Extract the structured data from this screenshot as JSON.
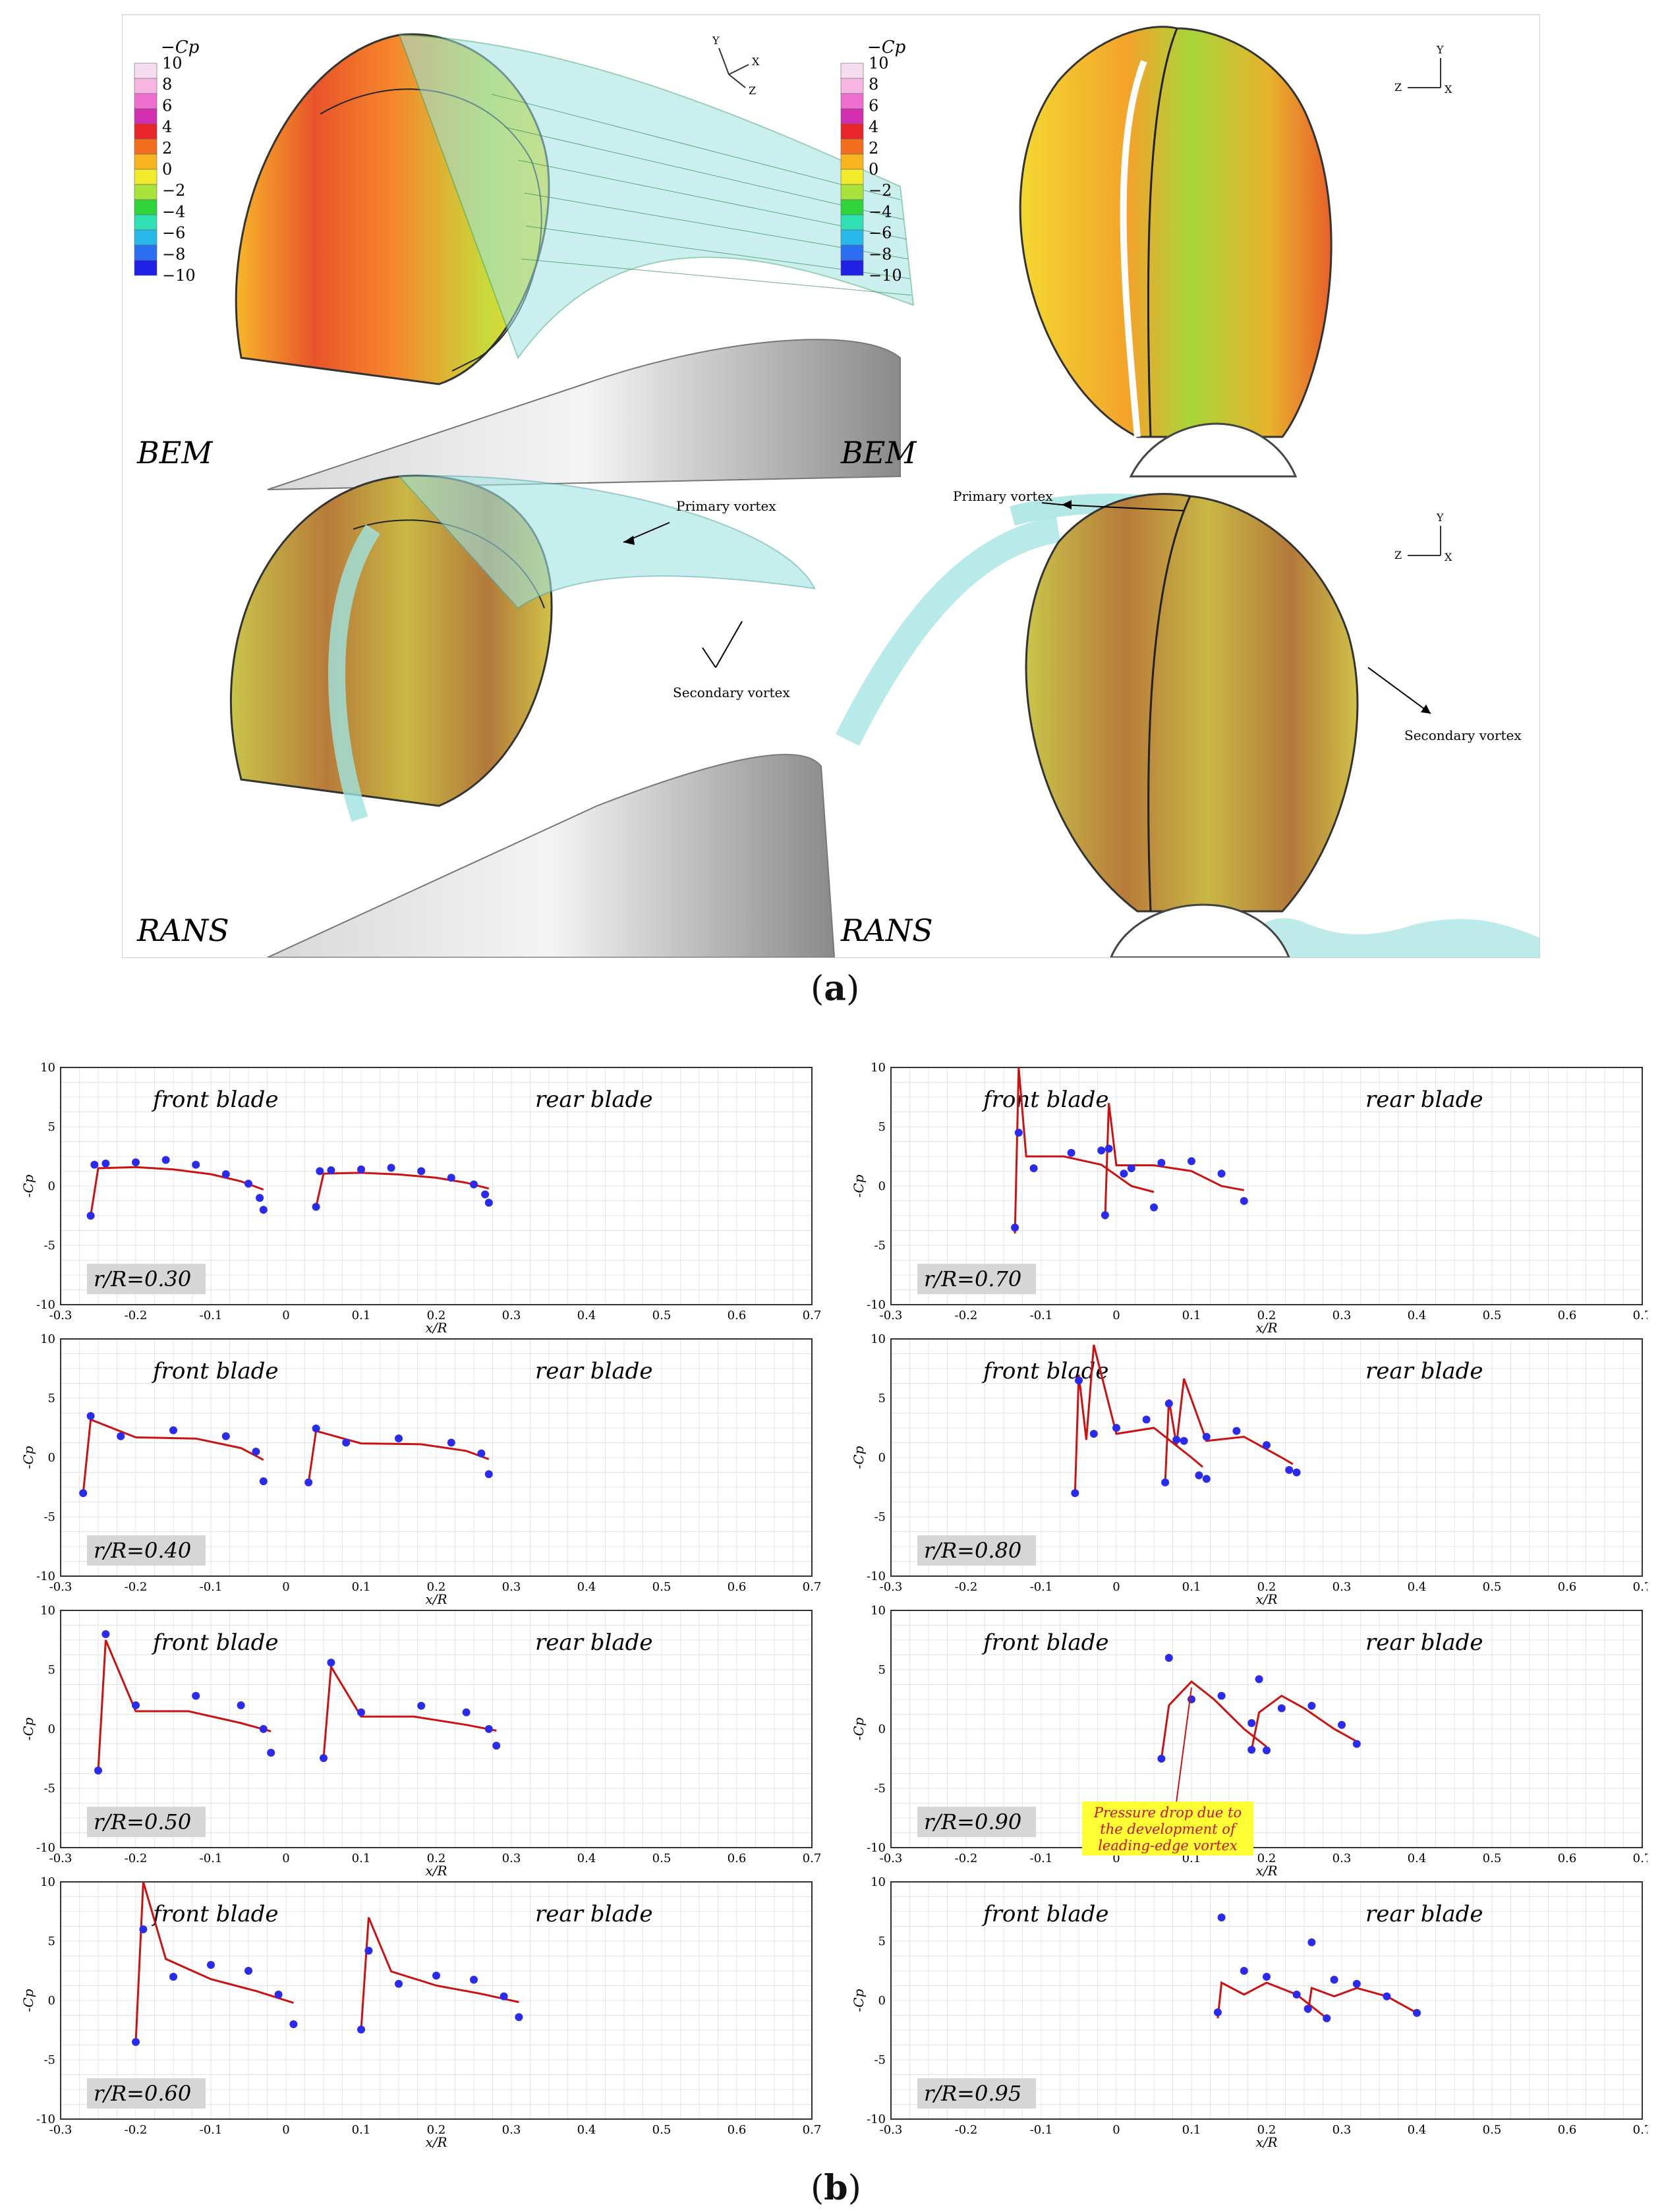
{
  "figure": {
    "caption_a": "(a)",
    "caption_a_letter": "a",
    "caption_b": "(b)",
    "caption_b_letter": "b"
  },
  "panel_a": {
    "legend_title": "−Cp",
    "legend_ticks": [
      "10",
      "8",
      "6",
      "4",
      "2",
      "0",
      "−2",
      "−4",
      "−6",
      "−8",
      "−10"
    ],
    "legend_colors": [
      "#f6dcee",
      "#f7b6e1",
      "#ef6fd1",
      "#d22eb0",
      "#e8252a",
      "#f36d1e",
      "#f8b520",
      "#f2ea2c",
      "#a8e23a",
      "#2fd43a",
      "#2ee0b4",
      "#28b8ea",
      "#2a6ef2",
      "#2020e6"
    ],
    "views": [
      {
        "label": "BEM",
        "axes": [
          "Y",
          "X",
          "Z"
        ]
      },
      {
        "label": "BEM",
        "axes": [
          "Y",
          "Z",
          "X"
        ]
      },
      {
        "label": "RANS",
        "axes": []
      },
      {
        "label": "RANS",
        "axes": [
          "Y",
          "Z",
          "X"
        ]
      }
    ],
    "annotations": {
      "primary_vortex_1": "Primary vortex",
      "secondary_vortex_1": "Secondary vortex",
      "primary_vortex_2": "Primary vortex",
      "secondary_vortex_2": "Secondary vortex"
    }
  },
  "chart_data": [
    {
      "type": "line",
      "radius_label": "r/R=0.30",
      "ylabel": "-Cp",
      "xlabel": "x/R",
      "xlim": [
        -0.3,
        0.7
      ],
      "ylim": [
        -10,
        10
      ],
      "annotations": [
        "front blade",
        "rear blade"
      ],
      "series": [
        {
          "name": "BEM",
          "style": "red solid line",
          "x": [
            -0.26,
            -0.25,
            -0.2,
            -0.15,
            -0.1,
            -0.06,
            -0.03
          ],
          "y": [
            -2.5,
            1.5,
            1.6,
            1.4,
            1.0,
            0.4,
            -0.3
          ]
        },
        {
          "name": "RANS",
          "style": "blue dots",
          "x": [
            -0.26,
            -0.255,
            -0.24,
            -0.2,
            -0.16,
            -0.12,
            -0.08,
            -0.05,
            -0.035,
            -0.03
          ],
          "y": [
            -2.5,
            1.8,
            1.9,
            2.0,
            2.2,
            1.8,
            1.0,
            0.2,
            -1.0,
            -2.0
          ]
        }
      ]
    },
    {
      "type": "line",
      "radius_label": "r/R=0.70",
      "ylabel": "-Cp",
      "xlabel": "x/R",
      "xlim": [
        -0.3,
        0.7
      ],
      "ylim": [
        -10,
        10
      ],
      "annotations": [
        "front blade",
        "rear blade"
      ],
      "series": [
        {
          "name": "BEM",
          "style": "red solid line",
          "x": [
            -0.135,
            -0.13,
            -0.12,
            -0.07,
            -0.02,
            0.02,
            0.05
          ],
          "y": [
            -4.0,
            10,
            2.5,
            2.5,
            1.8,
            0.0,
            -0.5
          ]
        },
        {
          "name": "RANS",
          "style": "blue dots",
          "x": [
            -0.135,
            -0.13,
            -0.11,
            -0.06,
            -0.02,
            0.02,
            0.05
          ],
          "y": [
            -3.5,
            4.5,
            1.5,
            2.8,
            3.0,
            1.5,
            -1.8
          ]
        }
      ]
    },
    {
      "type": "line",
      "radius_label": "r/R=0.40",
      "ylabel": "-Cp",
      "xlabel": "x/R",
      "xlim": [
        -0.3,
        0.7
      ],
      "ylim": [
        -10,
        10
      ],
      "annotations": [
        "front blade",
        "rear blade"
      ],
      "series": [
        {
          "name": "BEM",
          "style": "red solid line",
          "x": [
            -0.27,
            -0.26,
            -0.2,
            -0.12,
            -0.06,
            -0.03
          ],
          "y": [
            -3.0,
            3.2,
            1.7,
            1.6,
            0.8,
            -0.2
          ]
        },
        {
          "name": "RANS",
          "style": "blue dots",
          "x": [
            -0.27,
            -0.26,
            -0.22,
            -0.15,
            -0.08,
            -0.04,
            -0.03
          ],
          "y": [
            -3.0,
            3.5,
            1.8,
            2.3,
            1.8,
            0.5,
            -2.0
          ]
        }
      ]
    },
    {
      "type": "line",
      "radius_label": "r/R=0.80",
      "ylabel": "-Cp",
      "xlabel": "x/R",
      "xlim": [
        -0.3,
        0.7
      ],
      "ylim": [
        -10,
        10
      ],
      "annotations": [
        "front blade",
        "rear blade"
      ],
      "series": [
        {
          "name": "BEM",
          "style": "red solid line",
          "x": [
            -0.055,
            -0.05,
            -0.04,
            -0.03,
            0.0,
            0.05,
            0.1,
            0.115
          ],
          "y": [
            -3.0,
            7.0,
            1.5,
            9.5,
            2.0,
            2.5,
            0.0,
            -0.8
          ]
        },
        {
          "name": "RANS",
          "style": "blue dots",
          "x": [
            -0.055,
            -0.05,
            -0.03,
            0.0,
            0.04,
            0.08,
            0.11,
            0.12
          ],
          "y": [
            -3.0,
            6.5,
            2.0,
            2.5,
            3.2,
            1.5,
            -1.5,
            -1.8
          ]
        }
      ]
    },
    {
      "type": "line",
      "radius_label": "r/R=0.50",
      "ylabel": "-Cp",
      "xlabel": "x/R",
      "xlim": [
        -0.3,
        0.7
      ],
      "ylim": [
        -10,
        10
      ],
      "annotations": [
        "front blade",
        "rear blade"
      ],
      "series": [
        {
          "name": "BEM",
          "style": "red solid line",
          "x": [
            -0.25,
            -0.24,
            -0.2,
            -0.13,
            -0.06,
            -0.02
          ],
          "y": [
            -3.5,
            7.5,
            1.5,
            1.5,
            0.5,
            -0.2
          ]
        },
        {
          "name": "RANS",
          "style": "blue dots",
          "x": [
            -0.25,
            -0.24,
            -0.2,
            -0.12,
            -0.06,
            -0.03,
            -0.02
          ],
          "y": [
            -3.5,
            8.0,
            2.0,
            2.8,
            2.0,
            0.0,
            -2.0
          ]
        }
      ]
    },
    {
      "type": "line",
      "radius_label": "r/R=0.90",
      "ylabel": "-Cp",
      "xlabel": "x/R",
      "xlim": [
        -0.3,
        0.7
      ],
      "ylim": [
        -10,
        10
      ],
      "annotations": [
        "front blade",
        "rear blade",
        "Pressure drop due to the development of leading-edge vortex"
      ],
      "series": [
        {
          "name": "BEM",
          "style": "red solid line",
          "x": [
            0.06,
            0.07,
            0.1,
            0.13,
            0.17,
            0.2
          ],
          "y": [
            -2.5,
            2.0,
            4.0,
            2.5,
            0.0,
            -1.5
          ]
        },
        {
          "name": "RANS",
          "style": "blue dots",
          "x": [
            0.06,
            0.07,
            0.1,
            0.14,
            0.18,
            0.2
          ],
          "y": [
            -2.5,
            6.0,
            2.5,
            2.8,
            0.5,
            -1.8
          ]
        }
      ]
    },
    {
      "type": "line",
      "radius_label": "r/R=0.60",
      "ylabel": "-Cp",
      "xlabel": "x/R",
      "xlim": [
        -0.3,
        0.7
      ],
      "ylim": [
        -10,
        10
      ],
      "annotations": [
        "front blade",
        "rear blade"
      ],
      "series": [
        {
          "name": "BEM",
          "style": "red solid line",
          "x": [
            -0.2,
            -0.19,
            -0.16,
            -0.1,
            -0.04,
            0.01
          ],
          "y": [
            -3.5,
            10,
            3.5,
            1.8,
            0.8,
            -0.2
          ]
        },
        {
          "name": "RANS",
          "style": "blue dots",
          "x": [
            -0.2,
            -0.19,
            -0.15,
            -0.1,
            -0.05,
            -0.01,
            0.01
          ],
          "y": [
            -3.5,
            6.0,
            2.0,
            3.0,
            2.5,
            0.5,
            -2.0
          ]
        }
      ]
    },
    {
      "type": "line",
      "radius_label": "r/R=0.95",
      "ylabel": "-Cp",
      "xlabel": "x/R",
      "xlim": [
        -0.3,
        0.7
      ],
      "ylim": [
        -10,
        10
      ],
      "annotations": [
        "front blade",
        "rear blade"
      ],
      "series": [
        {
          "name": "BEM",
          "style": "red solid line",
          "x": [
            0.135,
            0.14,
            0.17,
            0.2,
            0.24,
            0.28
          ],
          "y": [
            -1.5,
            1.5,
            0.5,
            1.5,
            0.5,
            -1.5
          ]
        },
        {
          "name": "RANS",
          "style": "blue dots",
          "x": [
            0.135,
            0.14,
            0.17,
            0.2,
            0.24,
            0.28
          ],
          "y": [
            -1.0,
            7.0,
            2.5,
            2.0,
            0.5,
            -1.5
          ]
        }
      ]
    }
  ]
}
